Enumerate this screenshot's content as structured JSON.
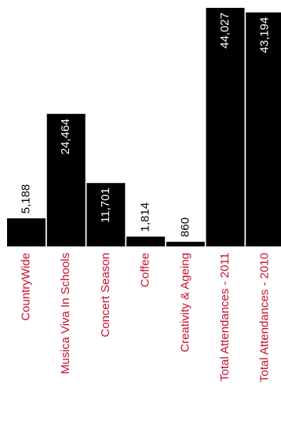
{
  "chart_data": {
    "type": "bar",
    "title": "",
    "xlabel": "",
    "ylabel": "",
    "categories": [
      "CountryWide",
      "Musica Viva In Schools",
      "Concert Season",
      "Coffee",
      "Creativity & Ageing",
      "Total Attendances - 2011",
      "Total Attendances - 2010"
    ],
    "values": [
      5188,
      24464,
      11701,
      1814,
      860,
      44027,
      43194
    ],
    "value_labels": [
      "5,188",
      "24,464",
      "11,701",
      "1,814",
      "860",
      "44,027",
      "43,194"
    ],
    "ylim": [
      0,
      44027
    ],
    "grid": false,
    "legend": "none",
    "colors": {
      "bar": "#000000",
      "category_label": "#c8102e",
      "value_label_dark": "#000000",
      "value_label_light": "#ffffff"
    }
  }
}
